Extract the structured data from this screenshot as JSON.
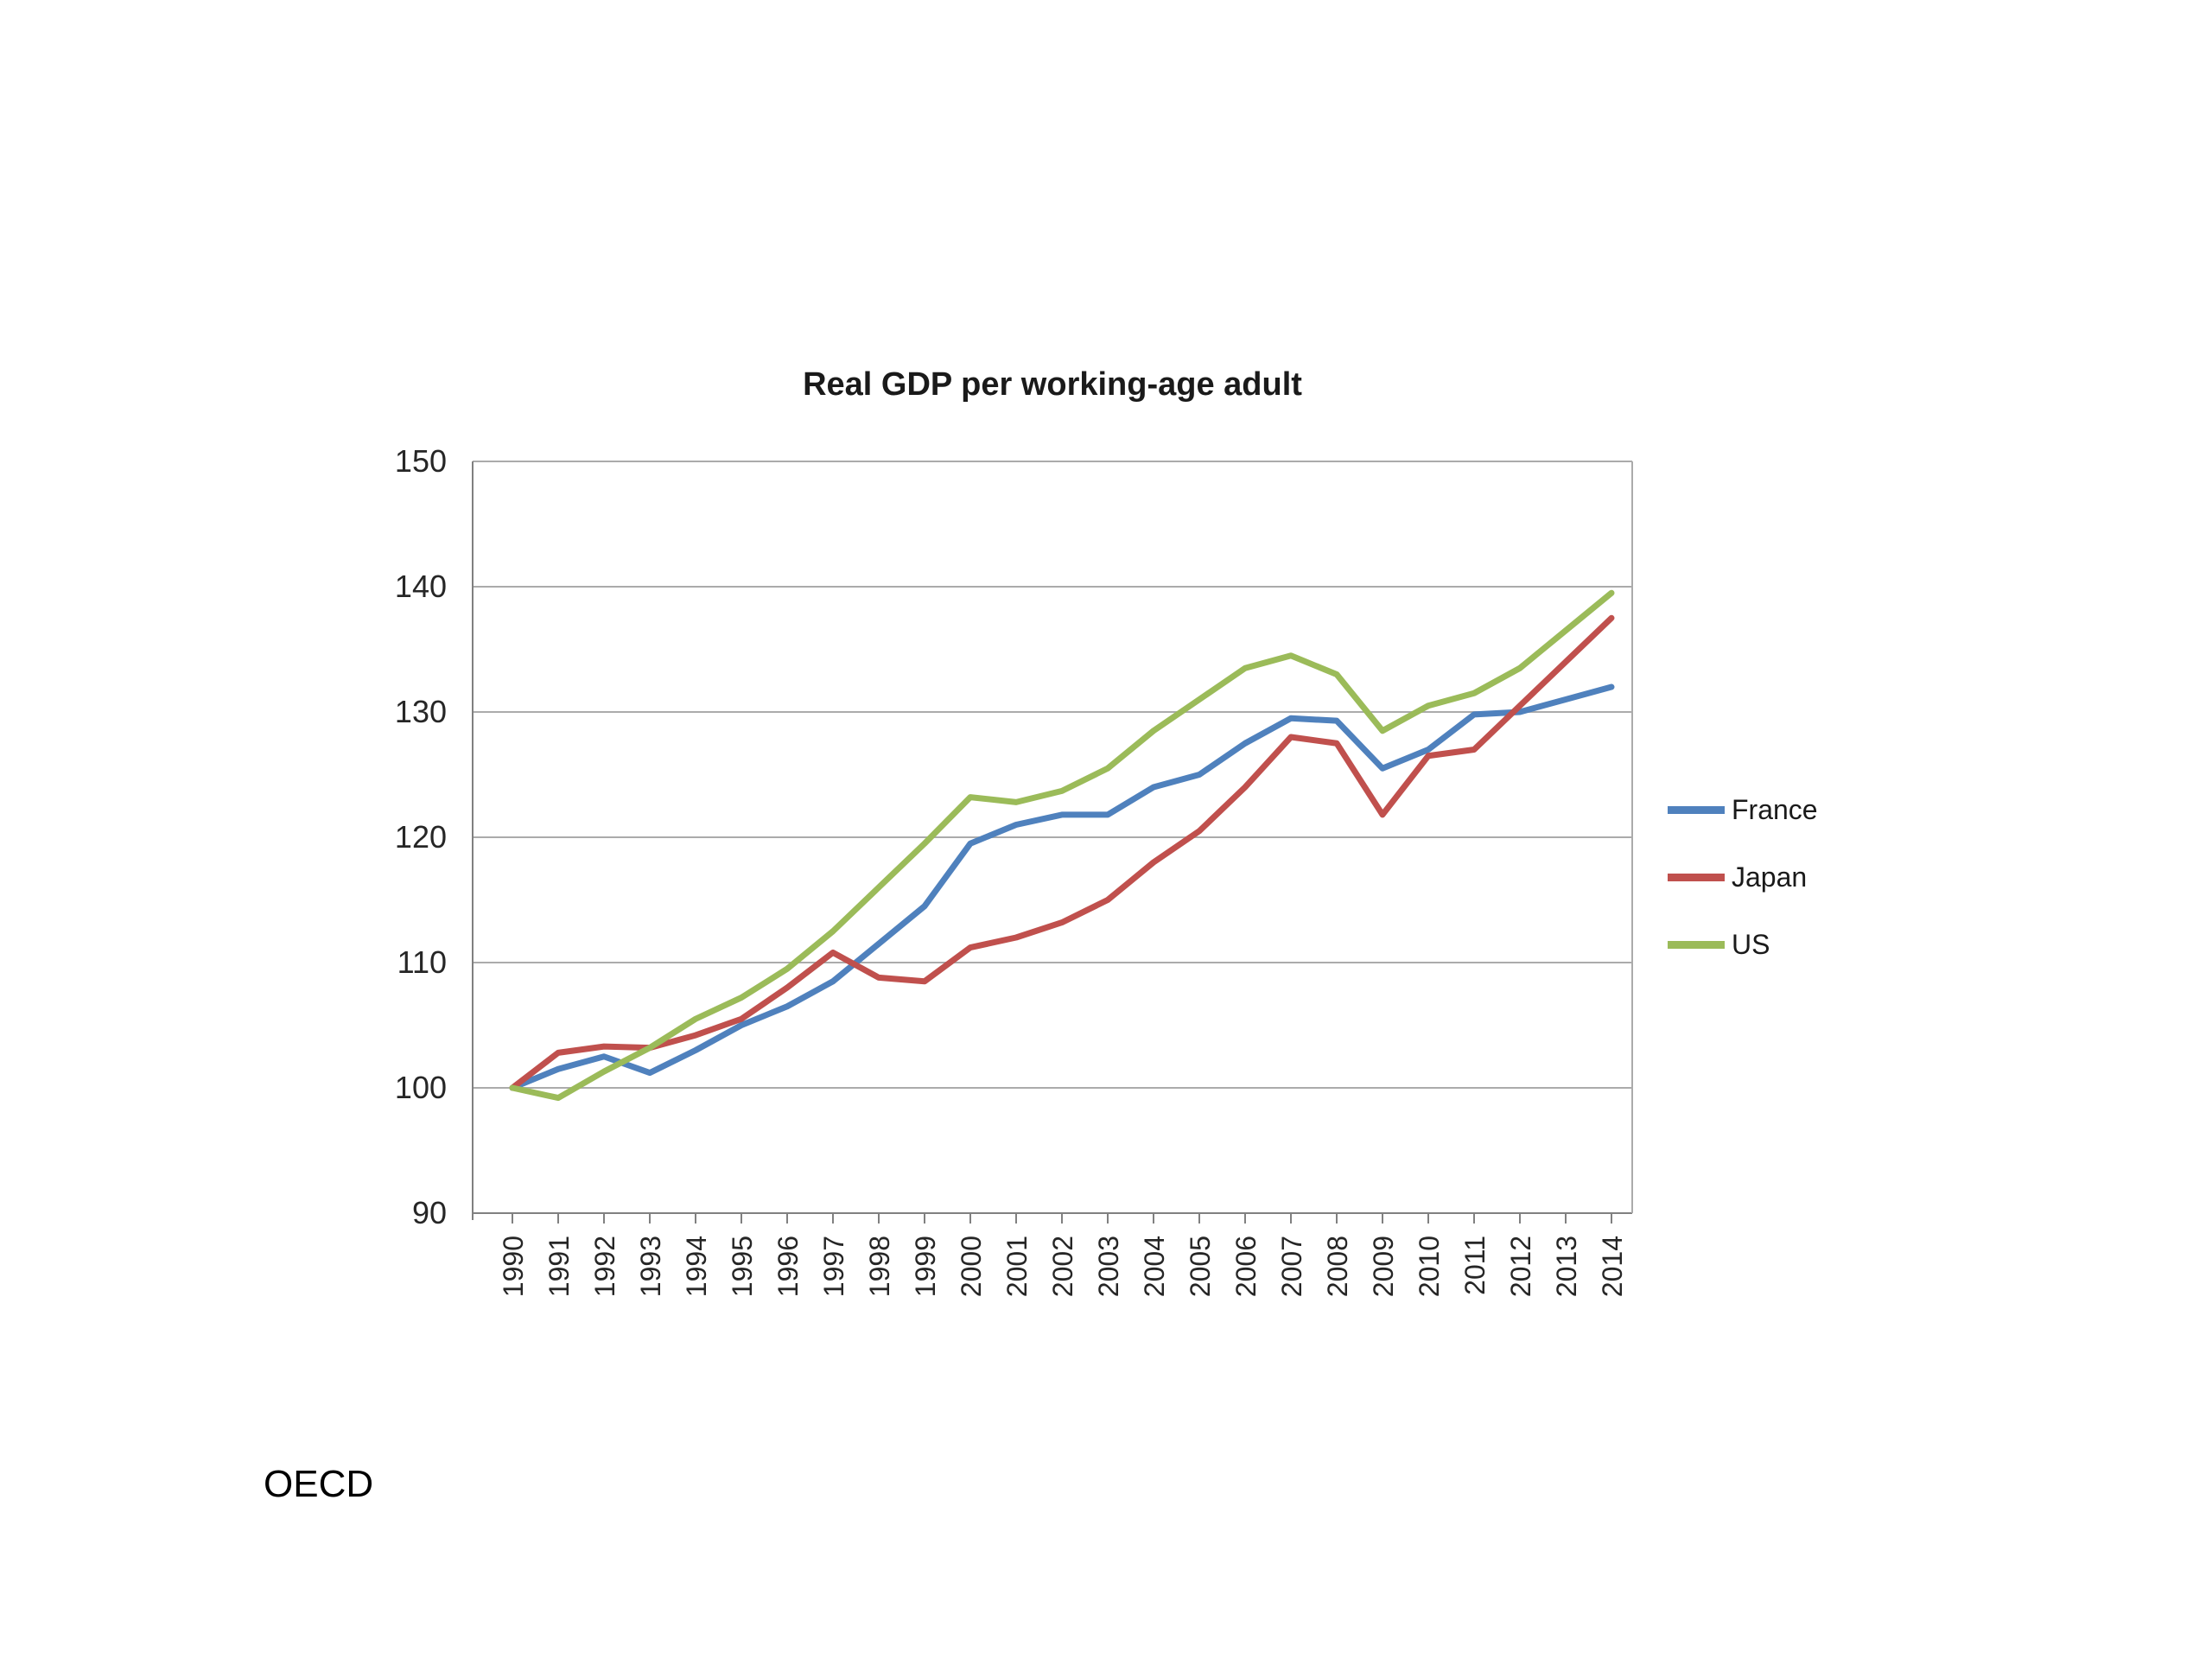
{
  "source_label": "OECD",
  "chart_data": {
    "type": "line",
    "title": "Real GDP per working-age adult",
    "xlabel": "",
    "ylabel": "",
    "ylim": [
      90,
      150
    ],
    "ytick_step": 10,
    "grid": true,
    "legend_position": "right",
    "categories": [
      "1990",
      "1991",
      "1992",
      "1993",
      "1994",
      "1995",
      "1996",
      "1997",
      "1998",
      "1999",
      "2000",
      "2001",
      "2002",
      "2003",
      "2004",
      "2005",
      "2006",
      "2007",
      "2008",
      "2009",
      "2010",
      "2011",
      "2012",
      "2013",
      "2014"
    ],
    "series": [
      {
        "name": "France",
        "color": "#4F81BD",
        "values": [
          100,
          101.5,
          102.5,
          101.2,
          103,
          105,
          106.5,
          108.5,
          111.5,
          114.5,
          119.5,
          121,
          121.8,
          121.8,
          124,
          125,
          127.5,
          129.5,
          129.3,
          125.5,
          127,
          129.8,
          130,
          131,
          132
        ]
      },
      {
        "name": "Japan",
        "color": "#C0504D",
        "values": [
          100,
          102.8,
          103.3,
          103.2,
          104.2,
          105.5,
          108,
          110.8,
          108.8,
          108.5,
          111.2,
          112,
          113.2,
          115,
          118,
          120.5,
          124,
          128,
          127.5,
          121.8,
          126.5,
          127,
          130.5,
          134,
          137.5
        ]
      },
      {
        "name": "US",
        "color": "#9BBB59",
        "values": [
          100,
          99.2,
          101.3,
          103.2,
          105.5,
          107.2,
          109.5,
          112.5,
          116,
          119.5,
          123.2,
          122.8,
          123.7,
          125.5,
          128.5,
          131,
          133.5,
          134.5,
          133,
          128.5,
          130.5,
          131.5,
          133.5,
          136.5,
          139.5
        ]
      }
    ]
  }
}
